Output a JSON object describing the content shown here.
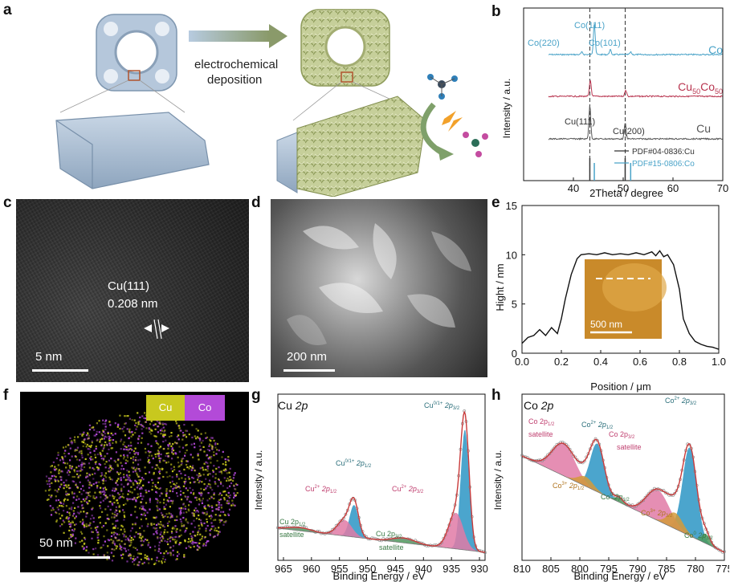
{
  "panel_labels": {
    "a": "a",
    "b": "b",
    "c": "c",
    "d": "d",
    "e": "e",
    "f": "f",
    "g": "g",
    "h": "h"
  },
  "panel_a": {
    "process_line1": "electrochemical",
    "process_line2": "deposition"
  },
  "colors": {
    "co": "#4aa3c8",
    "cuco": "#b8344f",
    "cu": "#555555",
    "fit_red": "#c93a3a",
    "pink": "#e07aa6",
    "blue": "#2c95c4",
    "green": "#4c9a5c",
    "orange": "#d49a3a",
    "afm": "#c98a2a"
  },
  "panel_c": {
    "label": "Cu(111)",
    "spacing": "0.208 nm",
    "scale": "5 nm"
  },
  "panel_d": {
    "scale": "200 nm"
  },
  "panel_f": {
    "legend_cu": "Cu",
    "legend_co": "Co",
    "scale": "50 nm"
  },
  "chart_data": [
    {
      "id": "b",
      "type": "line",
      "title": "",
      "xlabel": "2Theta / degree",
      "ylabel": "Intensity / a.u.",
      "xlim": [
        30,
        70
      ],
      "xticks": [
        "40",
        "50",
        "60",
        "70"
      ],
      "series": [
        {
          "name": "Co",
          "peaks": [
            {
              "x": 44.2,
              "label": "Co(111)"
            },
            {
              "x": 41.7,
              "label": "Co(220)"
            },
            {
              "x": 47.4,
              "label": "Co(101)"
            }
          ]
        },
        {
          "name": "Cu50Co50",
          "label_main": "Cu",
          "label_sub1": "50",
          "label_mid": "Co",
          "label_sub2": "50",
          "peaks": [
            {
              "x": 43.4
            },
            {
              "x": 50.5
            }
          ]
        },
        {
          "name": "Cu",
          "peaks": [
            {
              "x": 43.3,
              "label": "Cu(111)"
            },
            {
              "x": 50.4,
              "label": "Cu(200)"
            }
          ]
        }
      ],
      "reference_lines": [
        {
          "name": "PDF#04-0836:Cu",
          "x": [
            43.3,
            50.4
          ]
        },
        {
          "name": "PDF#15-0806:Co",
          "x": [
            44.2,
            51.5
          ]
        }
      ]
    },
    {
      "id": "e",
      "type": "line",
      "xlabel": "Position / μm",
      "ylabel": "Hight / nm",
      "xlim": [
        0.0,
        1.0
      ],
      "ylim": [
        0,
        15
      ],
      "xticks": [
        "0.0",
        "0.2",
        "0.4",
        "0.6",
        "0.8",
        "1.0"
      ],
      "yticks": [
        "0",
        "5",
        "10",
        "15"
      ],
      "x": [
        0.0,
        0.03,
        0.06,
        0.09,
        0.12,
        0.15,
        0.18,
        0.2,
        0.22,
        0.25,
        0.28,
        0.3,
        0.34,
        0.38,
        0.42,
        0.46,
        0.5,
        0.54,
        0.58,
        0.62,
        0.66,
        0.68,
        0.7,
        0.72,
        0.74,
        0.77,
        0.8,
        0.82,
        0.85,
        0.88,
        0.91,
        0.94,
        0.97,
        1.0
      ],
      "y": [
        1.0,
        1.6,
        1.8,
        2.4,
        1.8,
        2.6,
        2.0,
        3.5,
        5.5,
        8.0,
        9.6,
        10.0,
        10.1,
        10.0,
        10.2,
        10.0,
        10.1,
        10.0,
        10.2,
        10.0,
        10.3,
        9.9,
        10.4,
        9.8,
        10.0,
        9.0,
        6.5,
        3.5,
        2.0,
        1.2,
        0.9,
        0.7,
        0.6,
        0.4
      ],
      "inset_scale": "500 nm"
    },
    {
      "id": "g",
      "type": "line",
      "title": "Cu 2p",
      "title_main": "Cu ",
      "title_ital": "2p",
      "xlabel": "Binding Energy / eV",
      "ylabel": "Intensity / a.u.",
      "xlim": [
        966,
        929
      ],
      "xticks": [
        "965",
        "960",
        "955",
        "950",
        "945",
        "940",
        "935",
        "930"
      ],
      "annotations": [
        {
          "text": "Cu",
          "sup": "0/1+",
          "rest": " 2p",
          "sub": "3/2"
        },
        {
          "text": "Cu",
          "sup": "0/1+",
          "rest": " 2p",
          "sub": "1/2"
        },
        {
          "text": "Cu",
          "sup": "2+",
          "rest": " 2p",
          "sub": "1/2"
        },
        {
          "text": "Cu",
          "sup": "2+",
          "rest": " 2p",
          "sub": "3/2"
        },
        {
          "text": "Cu 2p",
          "sub": "1/2",
          "line2": "satellite"
        },
        {
          "text": "Cu 2p",
          "sub": "3/2",
          "line2": "satellite"
        }
      ]
    },
    {
      "id": "h",
      "type": "line",
      "title": "Co 2p",
      "title_main": "Co ",
      "title_ital": "2p",
      "xlabel": "Binding Energy / eV",
      "ylabel": "Intensity / a.u.",
      "xlim": [
        810,
        775
      ],
      "xticks": [
        "810",
        "805",
        "800",
        "795",
        "790",
        "785",
        "780",
        "775"
      ],
      "annotations": [
        {
          "text": "Co",
          "sup": "2+",
          "rest": " 2p",
          "sub": "3/2"
        },
        {
          "text": "Co",
          "sup": "2+",
          "rest": " 2p",
          "sub": "1/2"
        },
        {
          "text": "Co 2p",
          "sub": "1/2",
          "line2": "satellite"
        },
        {
          "text": "Co 2p",
          "sub": "3/2",
          "line2": "satellite"
        },
        {
          "text": "Co",
          "sup": "3+",
          "rest": " 2p",
          "sub": "1/2"
        },
        {
          "text": "Co",
          "sup": "0",
          "rest": " 2p",
          "sub": "1/2"
        },
        {
          "text": "Co",
          "sup": "3+",
          "rest": " 2p",
          "sub": "3/2"
        },
        {
          "text": "Co",
          "sup": "0",
          "rest": " 2p",
          "sub": "3/2"
        }
      ]
    }
  ]
}
